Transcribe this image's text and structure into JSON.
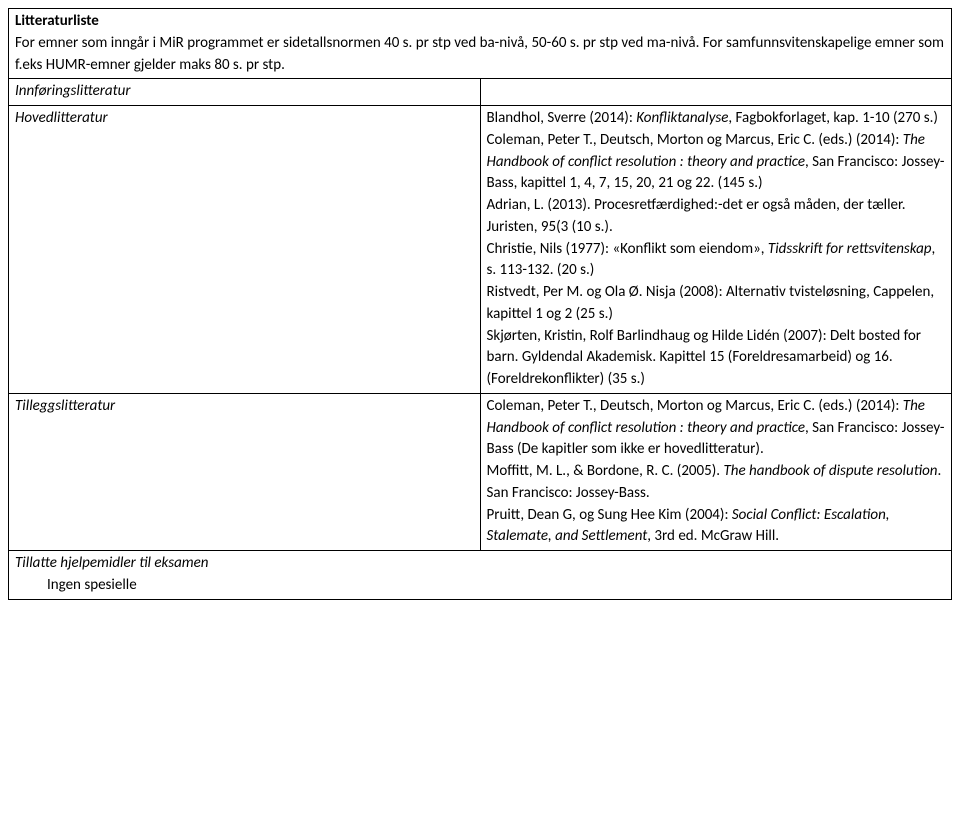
{
  "header": {
    "title": "Litteraturliste",
    "description": "For emner som inngår i MiR programmet er sidetallsnormen 40 s. pr stp ved ba-nivå, 50-60 s. pr stp ved ma-nivå. For samfunnsvitenskapelige emner som f.eks HUMR-emner gjelder maks 80 s. pr stp."
  },
  "rows": {
    "innforing": {
      "label": "Innføringslitteratur"
    },
    "hoved": {
      "label": "Hovedlitteratur",
      "ref1_a": "Blandhol, Sverre (2014): ",
      "ref1_b": "Konfliktanalyse",
      "ref1_c": ", Fagbokforlaget, kap. 1-10 (270 s.)",
      "ref2_a": "Coleman, Peter T., Deutsch, Morton og Marcus, Eric C. (eds.) (2014): ",
      "ref2_b": "The Handbook of conflict resolution : theory and practice",
      "ref2_c": ", San Francisco: Jossey-Bass, kapittel 1, 4, 7, 15, 20, 21 og 22. (145 s.)",
      "ref3": "Adrian, L. (2013). Procesretfærdighed:-det er også måden, der tæller. Juristen, 95(3 (10 s.).",
      "ref4_a": "Christie, Nils (1977): «Konflikt som eiendom», ",
      "ref4_b": "Tidsskrift for rettsvitenskap",
      "ref4_c": ", s. 113-132. (20 s.)",
      "ref5": "Ristvedt, Per M. og Ola Ø. Nisja (2008): Alternativ tvisteløsning, Cappelen, kapittel 1 og 2 (25 s.)",
      "ref6": "Skjørten, Kristin, Rolf Barlindhaug og Hilde Lidén (2007): Delt bosted for barn. Gyldendal Akademisk. Kapittel 15 (Foreldresamarbeid) og 16. (Foreldrekonflikter) (35 s.)"
    },
    "tillegg": {
      "label": "Tilleggslitteratur",
      "ref1_a": "Coleman, Peter T., Deutsch, Morton og Marcus, Eric C. (eds.) (2014): ",
      "ref1_b": "The Handbook of conflict resolution : theory and practice",
      "ref1_c": ", San Francisco: Jossey-Bass (De kapitler som ikke er hovedlitteratur).",
      "ref2_a": "Moffitt, M. L., & Bordone, R. C. (2005). ",
      "ref2_b": "The handbook of dispute resolution",
      "ref2_c": ". San Francisco: Jossey-Bass.",
      "ref3_a": "Pruitt, Dean G, og Sung Hee Kim (2004): ",
      "ref3_b": "Social Conflict: Escalation, Stalemate, and Settlement",
      "ref3_c": ", 3rd ed. McGraw Hill."
    },
    "tillatte": {
      "label": "Tillatte hjelpemidler til eksamen",
      "sub": "Ingen spesielle"
    }
  }
}
